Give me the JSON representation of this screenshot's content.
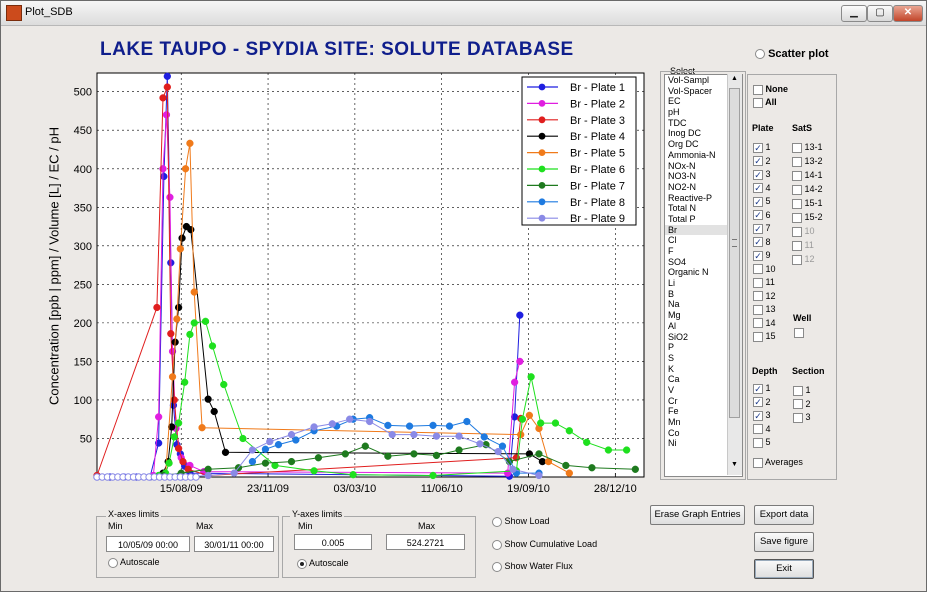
{
  "window": {
    "title": "Plot_SDB",
    "controls": [
      "▁",
      "▢",
      "✕"
    ]
  },
  "main_title": "LAKE TAUPO - SPYDIA SITE:  SOLUTE  DATABASE",
  "y_axis_label": "Concentration  [ppb | ppm]  /  Volume [L]  /  EC  /  pH",
  "scatter": {
    "label": "Scatter plot",
    "checked": false
  },
  "select": {
    "title": "Select",
    "items": [
      "Vol-Sampl",
      "Vol-Spacer",
      "EC",
      "pH",
      "TDC",
      "Inog DC",
      "Org DC",
      "Ammonia-N",
      "NOx-N",
      "NO3-N",
      "NO2-N",
      "Reactive-P",
      "Total N",
      "Total P",
      "Br",
      "Cl",
      "F",
      "SO4",
      "Organic N",
      "Li",
      "B",
      "Na",
      "Mg",
      "Al",
      "SiO2",
      "P",
      "S",
      "K",
      "Ca",
      "V",
      "Cr",
      "Fe",
      "Mn",
      "Co",
      "Ni"
    ],
    "selected": "Br"
  },
  "filters": {
    "none": {
      "label": "None",
      "checked": false
    },
    "all": {
      "label": "All",
      "checked": false
    },
    "plate_header": "Plate",
    "sats_header": "SatS",
    "plates": [
      {
        "label": "1",
        "checked": true
      },
      {
        "label": "2",
        "checked": true
      },
      {
        "label": "3",
        "checked": true
      },
      {
        "label": "4",
        "checked": true
      },
      {
        "label": "5",
        "checked": true
      },
      {
        "label": "6",
        "checked": true
      },
      {
        "label": "7",
        "checked": true
      },
      {
        "label": "8",
        "checked": true
      },
      {
        "label": "9",
        "checked": true
      },
      {
        "label": "10",
        "checked": false
      },
      {
        "label": "11",
        "checked": false
      },
      {
        "label": "12",
        "checked": false
      },
      {
        "label": "13",
        "checked": false
      },
      {
        "label": "14",
        "checked": false
      },
      {
        "label": "15",
        "checked": false
      }
    ],
    "sats": [
      {
        "label": "13-1",
        "enabled": true
      },
      {
        "label": "13-2",
        "enabled": true
      },
      {
        "label": "14-1",
        "enabled": true
      },
      {
        "label": "14-2",
        "enabled": true
      },
      {
        "label": "15-1",
        "enabled": true
      },
      {
        "label": "15-2",
        "enabled": true
      },
      {
        "label": "10",
        "enabled": false
      },
      {
        "label": "11",
        "enabled": false
      },
      {
        "label": "12",
        "enabled": false
      }
    ],
    "well": {
      "label": "Well",
      "checked": false
    },
    "depth_header": "Depth",
    "depths": [
      {
        "label": "1",
        "checked": true
      },
      {
        "label": "2",
        "checked": true
      },
      {
        "label": "3",
        "checked": true
      },
      {
        "label": "4",
        "checked": false
      },
      {
        "label": "5",
        "checked": false
      }
    ],
    "section_header": "Section",
    "sections": [
      {
        "label": "1",
        "checked": false
      },
      {
        "label": "2",
        "checked": false
      },
      {
        "label": "3",
        "checked": false
      }
    ],
    "averages": {
      "label": "Averages",
      "checked": false
    }
  },
  "xlimits": {
    "title": "X-axes limits",
    "min_label": "Min",
    "max_label": "Max",
    "min": "10/05/09 00:00",
    "max": "30/01/11 00:00",
    "autoscale": "Autoscale",
    "autoscale_on": false
  },
  "ylimits": {
    "title": "Y-axes limits",
    "min_label": "Min",
    "max_label": "Max",
    "min": "0.005",
    "max": "524.2721",
    "autoscale": "Autoscale",
    "autoscale_on": true
  },
  "load_options": [
    {
      "label": "Show Load",
      "on": false
    },
    {
      "label": "Show Cumulative Load",
      "on": false
    },
    {
      "label": "Show Water Flux",
      "on": false
    }
  ],
  "buttons": {
    "erase": "Erase Graph Entries",
    "export": "Export data",
    "save": "Save figure",
    "exit": "Exit"
  },
  "chart_data": {
    "type": "line",
    "title": "",
    "xlabel": "",
    "ylabel": "Concentration  [ppb | ppm]  /  Volume [L]  /  EC  /  pH",
    "x_unit": "date",
    "xlim": [
      "2009-05-10",
      "2011-01-30"
    ],
    "ylim": [
      0,
      524.2721
    ],
    "x_ticks": [
      {
        "label": "15/08/09",
        "date": "2009-08-15"
      },
      {
        "label": "23/11/09",
        "date": "2009-11-23"
      },
      {
        "label": "03/03/10",
        "date": "2010-03-03"
      },
      {
        "label": "11/06/10",
        "date": "2010-06-11"
      },
      {
        "label": "19/09/10",
        "date": "2010-09-19"
      },
      {
        "label": "28/12/10",
        "date": "2010-12-28"
      }
    ],
    "y_ticks": [
      50,
      100,
      150,
      200,
      250,
      300,
      350,
      400,
      450,
      500
    ],
    "grid": true,
    "legend_position": "top-right",
    "series": [
      {
        "name": "Br - Plate 1",
        "color": "#1f1fe0",
        "points": [
          [
            "2009-05-10",
            0
          ],
          [
            "2009-05-25",
            0
          ],
          [
            "2009-06-10",
            0
          ],
          [
            "2009-06-25",
            0
          ],
          [
            "2009-07-10",
            0
          ],
          [
            "2009-07-20",
            44
          ],
          [
            "2009-07-26",
            390
          ],
          [
            "2009-07-30",
            520
          ],
          [
            "2009-08-03",
            278
          ],
          [
            "2009-08-06",
            93
          ],
          [
            "2009-08-10",
            42
          ],
          [
            "2009-08-14",
            30
          ],
          [
            "2009-08-19",
            14
          ],
          [
            "2009-08-25",
            5
          ],
          [
            "2010-08-28",
            1
          ],
          [
            "2010-09-03",
            78
          ],
          [
            "2010-09-09",
            210
          ]
        ]
      },
      {
        "name": "Br - Plate 2",
        "color": "#e01ee0",
        "points": [
          [
            "2009-07-14",
            2
          ],
          [
            "2009-07-20",
            78
          ],
          [
            "2009-07-25",
            400
          ],
          [
            "2009-07-29",
            470
          ],
          [
            "2009-08-02",
            363
          ],
          [
            "2009-08-05",
            163
          ],
          [
            "2009-08-09",
            63
          ],
          [
            "2009-08-15",
            25
          ],
          [
            "2009-08-25",
            15
          ],
          [
            "2009-09-10",
            7
          ],
          [
            "2010-08-26",
            5
          ],
          [
            "2010-09-03",
            123
          ],
          [
            "2010-09-09",
            150
          ]
        ]
      },
      {
        "name": "Br - Plate 3",
        "color": "#e01e1e",
        "points": [
          [
            "2009-05-10",
            2
          ],
          [
            "2009-07-18",
            220
          ],
          [
            "2009-07-25",
            492
          ],
          [
            "2009-07-30",
            506
          ],
          [
            "2009-08-03",
            186
          ],
          [
            "2009-08-07",
            100
          ],
          [
            "2009-08-12",
            37
          ],
          [
            "2009-08-17",
            20
          ],
          [
            "2009-08-23",
            10
          ],
          [
            "2009-09-15",
            2
          ],
          [
            "2010-09-05",
            25
          ],
          [
            "2010-09-10",
            76
          ]
        ]
      },
      {
        "name": "Br - Plate 4",
        "color": "#000000",
        "points": [
          [
            "2009-07-25",
            5
          ],
          [
            "2009-07-31",
            20
          ],
          [
            "2009-08-04",
            65
          ],
          [
            "2009-08-08",
            175
          ],
          [
            "2009-08-12",
            220
          ],
          [
            "2009-08-16",
            310
          ],
          [
            "2009-08-21",
            325
          ],
          [
            "2009-08-26",
            321
          ],
          [
            "2009-09-15",
            101
          ],
          [
            "2009-09-22",
            85
          ],
          [
            "2009-10-05",
            32
          ],
          [
            "2010-09-20",
            30
          ],
          [
            "2010-10-05",
            20
          ]
        ]
      },
      {
        "name": "Br - Plate 5",
        "color": "#f07a1a",
        "points": [
          [
            "2009-07-28",
            3
          ],
          [
            "2009-08-05",
            130
          ],
          [
            "2009-08-10",
            205
          ],
          [
            "2009-08-14",
            296
          ],
          [
            "2009-08-20",
            400
          ],
          [
            "2009-08-25",
            433
          ],
          [
            "2009-08-30",
            240
          ],
          [
            "2009-09-08",
            64
          ],
          [
            "2010-09-10",
            55
          ],
          [
            "2010-09-20",
            80
          ],
          [
            "2010-10-01",
            63
          ],
          [
            "2010-10-12",
            20
          ],
          [
            "2010-11-05",
            5
          ]
        ]
      },
      {
        "name": "Br - Plate 6",
        "color": "#1ee01e",
        "points": [
          [
            "2009-07-20",
            2
          ],
          [
            "2009-07-28",
            5
          ],
          [
            "2009-08-01",
            18
          ],
          [
            "2009-08-07",
            52
          ],
          [
            "2009-08-12",
            70
          ],
          [
            "2009-08-19",
            123
          ],
          [
            "2009-08-25",
            185
          ],
          [
            "2009-08-30",
            200
          ],
          [
            "2009-09-12",
            202
          ],
          [
            "2009-09-20",
            170
          ],
          [
            "2009-10-03",
            120
          ],
          [
            "2009-10-25",
            50
          ],
          [
            "2009-12-01",
            15
          ],
          [
            "2010-01-15",
            8
          ],
          [
            "2010-03-01",
            3
          ],
          [
            "2010-06-01",
            2
          ],
          [
            "2010-09-05",
            8
          ],
          [
            "2010-09-12",
            75
          ],
          [
            "2010-09-22",
            130
          ],
          [
            "2010-10-03",
            70
          ],
          [
            "2010-10-20",
            70
          ],
          [
            "2010-11-05",
            60
          ],
          [
            "2010-11-25",
            45
          ],
          [
            "2010-12-20",
            35
          ],
          [
            "2011-01-10",
            35
          ]
        ]
      },
      {
        "name": "Br - Plate 7",
        "color": "#1e7a1e",
        "points": [
          [
            "2009-07-25",
            2
          ],
          [
            "2009-08-15",
            5
          ],
          [
            "2009-09-15",
            10
          ],
          [
            "2009-10-20",
            12
          ],
          [
            "2009-11-20",
            18
          ],
          [
            "2009-12-20",
            20
          ],
          [
            "2010-01-20",
            25
          ],
          [
            "2010-02-20",
            30
          ],
          [
            "2010-03-15",
            40
          ],
          [
            "2010-04-10",
            27
          ],
          [
            "2010-05-10",
            30
          ],
          [
            "2010-06-05",
            28
          ],
          [
            "2010-07-01",
            35
          ],
          [
            "2010-08-01",
            42
          ],
          [
            "2010-08-28",
            20
          ],
          [
            "2010-10-01",
            30
          ],
          [
            "2010-11-01",
            15
          ],
          [
            "2010-12-01",
            12
          ],
          [
            "2011-01-20",
            10
          ]
        ]
      },
      {
        "name": "Br - Plate 8",
        "color": "#1e7ae0",
        "points": [
          [
            "2009-11-05",
            20
          ],
          [
            "2009-11-20",
            36
          ],
          [
            "2009-12-05",
            42
          ],
          [
            "2009-12-25",
            48
          ],
          [
            "2010-01-15",
            60
          ],
          [
            "2010-02-10",
            66
          ],
          [
            "2010-03-01",
            75
          ],
          [
            "2010-03-20",
            77
          ],
          [
            "2010-04-10",
            67
          ],
          [
            "2010-05-05",
            66
          ],
          [
            "2010-06-01",
            67
          ],
          [
            "2010-06-20",
            66
          ],
          [
            "2010-07-10",
            72
          ],
          [
            "2010-07-30",
            52
          ],
          [
            "2010-08-20",
            40
          ],
          [
            "2010-09-05",
            5
          ],
          [
            "2010-10-01",
            5
          ]
        ]
      },
      {
        "name": "Br - Plate 9",
        "color": "#8a8ae6",
        "points": [
          [
            "2009-08-15",
            0
          ],
          [
            "2009-09-15",
            2
          ],
          [
            "2009-10-15",
            5
          ],
          [
            "2009-11-05",
            35
          ],
          [
            "2009-11-25",
            46
          ],
          [
            "2009-12-20",
            55
          ],
          [
            "2010-01-15",
            65
          ],
          [
            "2010-02-05",
            69
          ],
          [
            "2010-02-25",
            75
          ],
          [
            "2010-03-20",
            72
          ],
          [
            "2010-04-15",
            55
          ],
          [
            "2010-05-10",
            55
          ],
          [
            "2010-06-05",
            53
          ],
          [
            "2010-07-01",
            53
          ],
          [
            "2010-07-25",
            43
          ],
          [
            "2010-08-15",
            33
          ],
          [
            "2010-09-01",
            10
          ],
          [
            "2010-10-01",
            2
          ]
        ]
      }
    ]
  }
}
